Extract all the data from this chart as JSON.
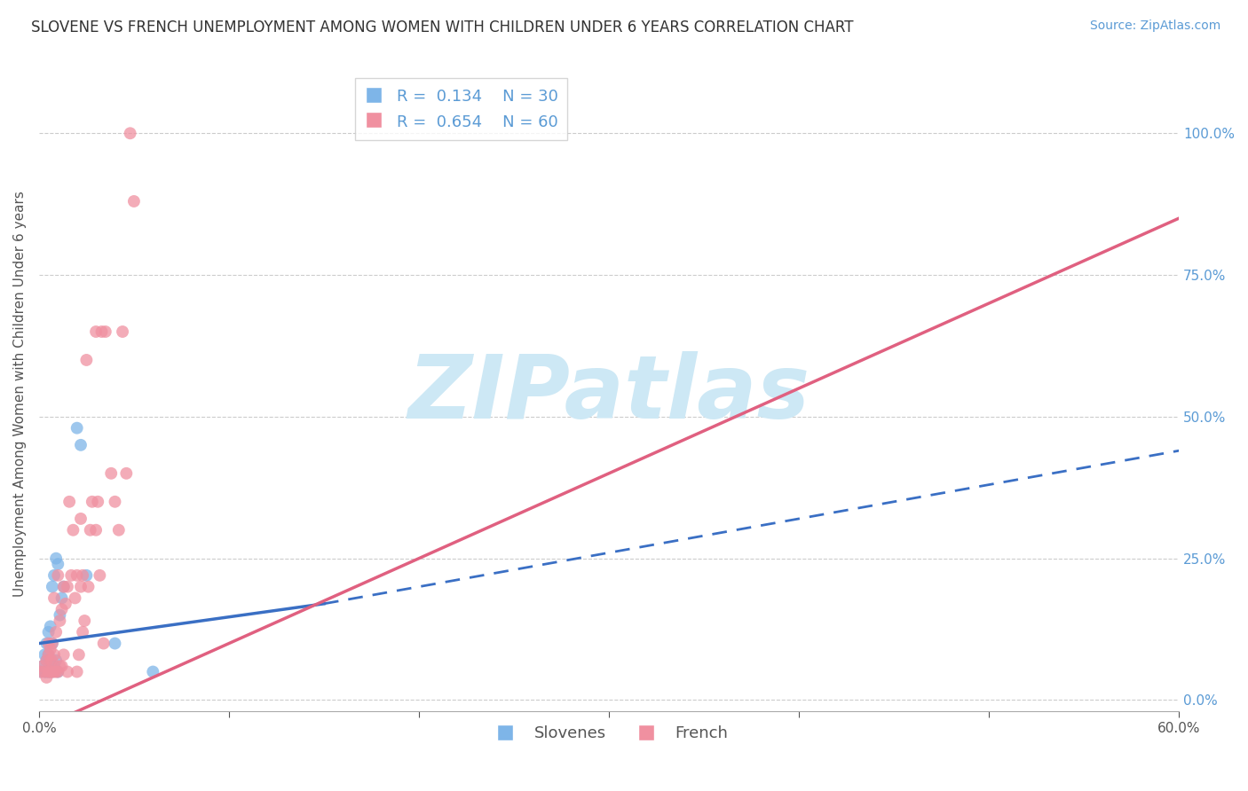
{
  "title": "SLOVENE VS FRENCH UNEMPLOYMENT AMONG WOMEN WITH CHILDREN UNDER 6 YEARS CORRELATION CHART",
  "source": "Source: ZipAtlas.com",
  "ylabel": "Unemployment Among Women with Children Under 6 years",
  "xlabel": "",
  "xlim": [
    0.0,
    0.6
  ],
  "ylim": [
    -0.02,
    1.1
  ],
  "yticks": [
    0.0,
    0.25,
    0.5,
    0.75,
    1.0
  ],
  "xticks": [
    0.0,
    0.1,
    0.2,
    0.3,
    0.4,
    0.5,
    0.6
  ],
  "slovene_color": "#7eb5e8",
  "french_color": "#f090a0",
  "slovene_line_color": "#3a6fc4",
  "french_line_color": "#e06080",
  "slovene_R": 0.134,
  "slovene_N": 30,
  "french_R": 0.654,
  "french_N": 60,
  "background_color": "#ffffff",
  "grid_color": "#cccccc",
  "title_fontsize": 12,
  "axis_label_fontsize": 11,
  "tick_fontsize": 11,
  "legend_fontsize": 13,
  "source_fontsize": 10,
  "watermark_text": "ZIPatlas",
  "watermark_color": "#cde8f5",
  "watermark_fontsize": 72,
  "slovene_x": [
    0.001,
    0.002,
    0.003,
    0.003,
    0.004,
    0.004,
    0.004,
    0.005,
    0.005,
    0.005,
    0.006,
    0.006,
    0.006,
    0.007,
    0.007,
    0.007,
    0.008,
    0.008,
    0.009,
    0.009,
    0.01,
    0.01,
    0.011,
    0.012,
    0.013,
    0.02,
    0.022,
    0.025,
    0.04,
    0.06
  ],
  "slovene_y": [
    0.05,
    0.06,
    0.05,
    0.08,
    0.05,
    0.07,
    0.1,
    0.05,
    0.08,
    0.12,
    0.05,
    0.07,
    0.13,
    0.05,
    0.1,
    0.2,
    0.06,
    0.22,
    0.07,
    0.25,
    0.05,
    0.24,
    0.15,
    0.18,
    0.2,
    0.48,
    0.45,
    0.22,
    0.1,
    0.05
  ],
  "french_x": [
    0.001,
    0.002,
    0.003,
    0.004,
    0.004,
    0.005,
    0.005,
    0.005,
    0.006,
    0.006,
    0.006,
    0.007,
    0.007,
    0.007,
    0.008,
    0.008,
    0.008,
    0.009,
    0.009,
    0.01,
    0.01,
    0.011,
    0.011,
    0.012,
    0.012,
    0.013,
    0.013,
    0.014,
    0.015,
    0.015,
    0.016,
    0.017,
    0.018,
    0.019,
    0.02,
    0.02,
    0.021,
    0.022,
    0.022,
    0.023,
    0.023,
    0.024,
    0.025,
    0.026,
    0.027,
    0.028,
    0.03,
    0.03,
    0.031,
    0.032,
    0.033,
    0.034,
    0.035,
    0.038,
    0.04,
    0.042,
    0.044,
    0.046,
    0.048,
    0.05
  ],
  "french_y": [
    0.05,
    0.06,
    0.05,
    0.04,
    0.07,
    0.05,
    0.08,
    0.1,
    0.05,
    0.07,
    0.09,
    0.05,
    0.07,
    0.1,
    0.05,
    0.08,
    0.18,
    0.05,
    0.12,
    0.05,
    0.22,
    0.06,
    0.14,
    0.06,
    0.16,
    0.08,
    0.2,
    0.17,
    0.05,
    0.2,
    0.35,
    0.22,
    0.3,
    0.18,
    0.05,
    0.22,
    0.08,
    0.2,
    0.32,
    0.12,
    0.22,
    0.14,
    0.6,
    0.2,
    0.3,
    0.35,
    0.3,
    0.65,
    0.35,
    0.22,
    0.65,
    0.1,
    0.65,
    0.4,
    0.35,
    0.3,
    0.65,
    0.4,
    1.0,
    0.88
  ],
  "slovene_line_xrange": [
    0.0,
    0.15
  ],
  "slovene_line_yrange": [
    0.1,
    0.17
  ],
  "slovene_dash_xrange": [
    0.15,
    0.6
  ],
  "slovene_dash_ystart": 0.17,
  "slovene_dash_yend": 0.44,
  "french_line_xrange": [
    0.0,
    0.6
  ],
  "french_line_ystart": -0.05,
  "french_line_yend": 0.85
}
